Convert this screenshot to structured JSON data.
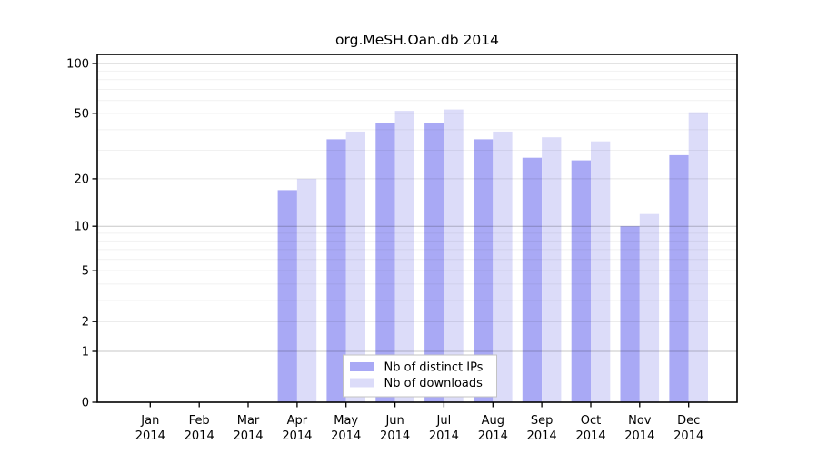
{
  "chart": {
    "title": "org.MeSH.Oan.db 2014"
  },
  "chart_data": {
    "type": "bar",
    "title": "org.MeSH.Oan.db 2014",
    "categories": [
      "Jan",
      "Feb",
      "Mar",
      "Apr",
      "May",
      "Jun",
      "Jul",
      "Aug",
      "Sep",
      "Oct",
      "Nov",
      "Dec"
    ],
    "x_tick_year": "2014",
    "series": [
      {
        "name": "Nb of distinct IPs",
        "color": "#a9a9f5",
        "values": [
          0,
          0,
          0,
          17,
          35,
          44,
          44,
          35,
          27,
          26,
          10,
          28
        ]
      },
      {
        "name": "Nb of downloads",
        "color": "#dcdcf9",
        "values": [
          0,
          0,
          0,
          20,
          39,
          52,
          53,
          39,
          36,
          34,
          12,
          51
        ]
      }
    ],
    "y_scale": "log1p",
    "ylim": [
      0,
      113
    ],
    "y_ticks_labeled": [
      0,
      1,
      2,
      5,
      10,
      20,
      50,
      100
    ],
    "y_ticks_medium": [
      2,
      5,
      20,
      50
    ],
    "y_ticks_major": [
      1,
      10,
      100
    ],
    "y_ticks_minor": [
      3,
      4,
      6,
      7,
      8,
      9,
      30,
      40,
      60,
      70,
      80,
      90
    ],
    "grid": true,
    "legend_position": "bottom-center",
    "legend_labels": [
      "Nb of distinct IPs",
      "Nb of downloads"
    ]
  }
}
